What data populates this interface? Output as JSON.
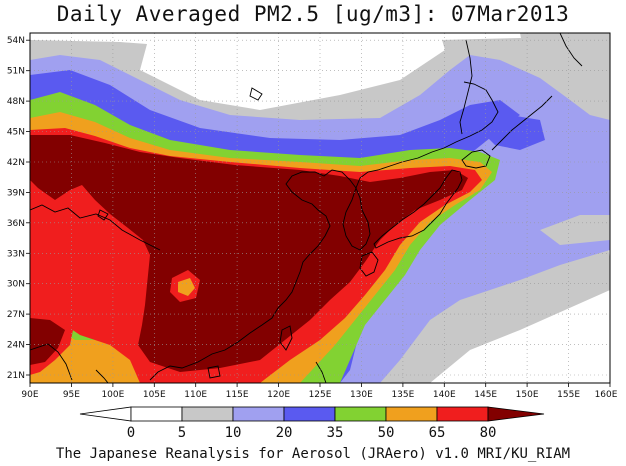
{
  "title": "Daily Averaged PM2.5 [ug/m3]: 07Mar2013",
  "footer": "The Japanese Reanalysis for Aerosol (JRAero) v1.0 MRI/KU_RIAM",
  "lon_ticks": [
    "90E",
    "95E",
    "100E",
    "105E",
    "110E",
    "115E",
    "120E",
    "125E",
    "130E",
    "135E",
    "140E",
    "145E",
    "150E",
    "155E",
    "160E"
  ],
  "lat_ticks": [
    "21N",
    "24N",
    "27N",
    "30N",
    "33N",
    "36N",
    "39N",
    "42N",
    "45N",
    "48N",
    "51N",
    "54N"
  ],
  "colorbar": {
    "labels": [
      "0",
      "5",
      "10",
      "20",
      "35",
      "50",
      "65",
      "80"
    ],
    "colors": [
      "#ffffff",
      "#c8c8c8",
      "#a0a0f0",
      "#5a5af0",
      "#82d232",
      "#f0a01e",
      "#f01e1e",
      "#820000"
    ]
  },
  "colors": {
    "white": "#ffffff",
    "gray": "#c8c8c8",
    "light_blue": "#a0a0f0",
    "blue": "#5a5af0",
    "green": "#82d232",
    "orange": "#f0a01e",
    "red": "#f01e1e",
    "dark_red": "#820000"
  }
}
